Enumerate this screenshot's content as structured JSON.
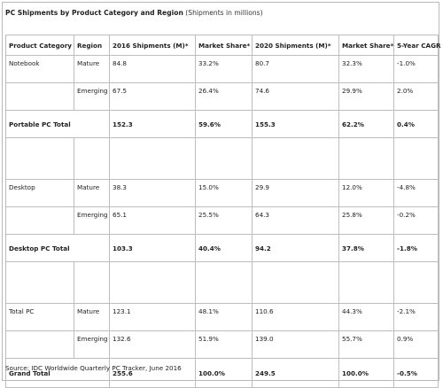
{
  "title": {
    "main": "PC Shipments by Product Category and Region",
    "sub": "(Shipments in millions)"
  },
  "columns": [
    "Product Category",
    "Region",
    "2016 Shipments (M)*",
    "Market Share*",
    "2020 Shipments (M)*",
    "Market Share*",
    "5-Year CAGR"
  ],
  "rows": [
    {
      "kind": "data",
      "cells": [
        "Notebook",
        "Mature",
        "84.8",
        "33.2%",
        "80.7",
        "32.3%",
        "-1.0%"
      ]
    },
    {
      "kind": "data",
      "cells": [
        "",
        "Emerging",
        "67.5",
        "26.4%",
        "74.6",
        "29.9%",
        "2.0%"
      ]
    },
    {
      "kind": "total",
      "cells": [
        "Portable PC Total",
        "152.3",
        "59.6%",
        "155.3",
        "62.2%",
        "0.4%"
      ]
    },
    {
      "kind": "blank",
      "cells": [
        "",
        "",
        "",
        "",
        "",
        "",
        ""
      ]
    },
    {
      "kind": "data",
      "cells": [
        "Desktop",
        "Mature",
        "38.3",
        "15.0%",
        "29.9",
        "12.0%",
        "-4.8%"
      ]
    },
    {
      "kind": "data",
      "cells": [
        "",
        "Emerging",
        "65.1",
        "25.5%",
        "64.3",
        "25.8%",
        "-0.2%"
      ]
    },
    {
      "kind": "total",
      "cells": [
        "Desktop PC Total",
        "103.3",
        "40.4%",
        "94.2",
        "37.8%",
        "-1.8%"
      ]
    },
    {
      "kind": "blank",
      "cells": [
        "",
        "",
        "",
        "",
        "",
        "",
        ""
      ]
    },
    {
      "kind": "data",
      "cells": [
        "Total PC",
        "Mature",
        "123.1",
        "48.1%",
        "110.6",
        "44.3%",
        "-2.1%"
      ]
    },
    {
      "kind": "data",
      "cells": [
        "",
        "Emerging",
        "132.6",
        "51.9%",
        "139.0",
        "55.7%",
        "0.9%"
      ]
    },
    {
      "kind": "total grand",
      "cells": [
        "Grand Total",
        "255.6",
        "100.0%",
        "249.5",
        "100.0%",
        "-0.5%"
      ]
    }
  ],
  "source": "Source: IDC Worldwide Quarterly PC Tracker, June 2016"
}
